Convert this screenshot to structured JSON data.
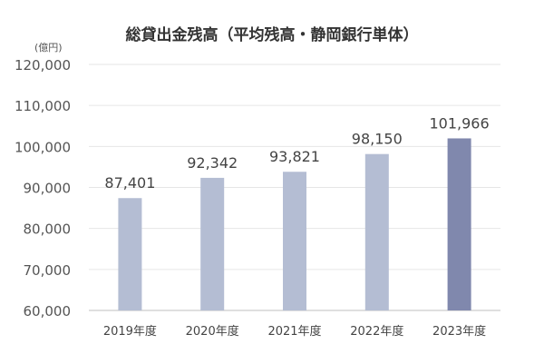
{
  "chart_data": {
    "type": "bar",
    "title": "総貸出金残高（平均残高・静岡銀行単体）",
    "unit_label": "(億円)",
    "categories": [
      "2019年度",
      "2020年度",
      "2021年度",
      "2022年度",
      "2023年度"
    ],
    "values": [
      87401,
      92342,
      93821,
      98150,
      101966
    ],
    "value_labels": [
      "87,401",
      "92,342",
      "93,821",
      "98,150",
      "101,966"
    ],
    "ylim": [
      60000,
      120000
    ],
    "yticks": [
      60000,
      70000,
      80000,
      90000,
      100000,
      110000,
      120000
    ],
    "ytick_labels": [
      "60,000",
      "70,000",
      "80,000",
      "90,000",
      "100,000",
      "110,000",
      "120,000"
    ],
    "grid": true,
    "legend": "none",
    "colors": {
      "bar": "#b4bdd3",
      "highlight_bar": "#8088ad",
      "grid": "#e6e6e6",
      "axis": "#bfbfbf"
    },
    "highlight_index": 4
  }
}
